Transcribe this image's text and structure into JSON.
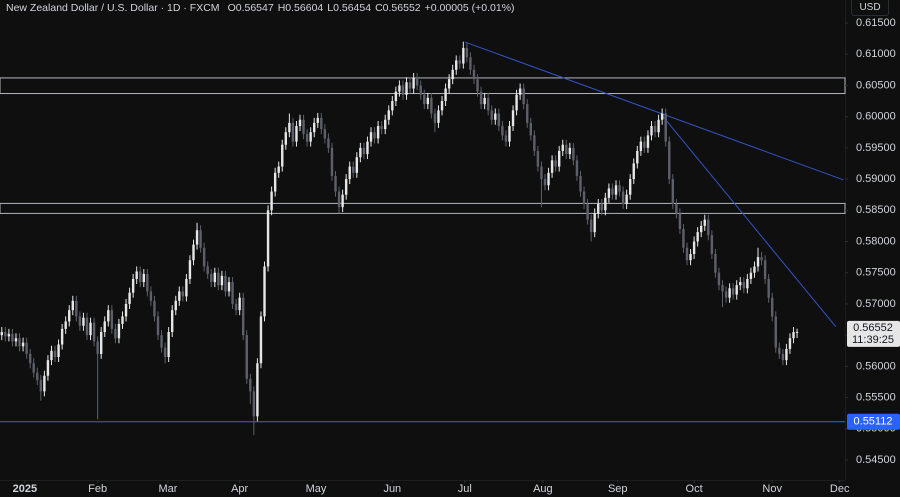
{
  "chart_data": {
    "type": "candlestick",
    "legend": {
      "symbol": "New Zealand Dollar / U.S. Dollar · 1D · FXCM",
      "fields": [
        {
          "label": "O",
          "value": "0.56547"
        },
        {
          "label": "H",
          "value": "0.56604"
        },
        {
          "label": "L",
          "value": "0.56454"
        },
        {
          "label": "C",
          "value": "0.56552"
        }
      ],
      "change": "+0.00005 (+0.01%)"
    },
    "currency": "USD",
    "countdown": "11:39:25",
    "up_color": "#e6e6e6",
    "down_color": "#5d606b",
    "xlim": [
      -0.5,
      237.5
    ],
    "xticks": [
      {
        "value": 6.5,
        "label": "2025"
      },
      {
        "value": 27,
        "label": "Feb"
      },
      {
        "value": 46.8,
        "label": "Mar"
      },
      {
        "value": 67,
        "label": "Apr"
      },
      {
        "value": 88.5,
        "label": "May"
      },
      {
        "value": 110,
        "label": "Jun"
      },
      {
        "value": 130.4,
        "label": "Jul"
      },
      {
        "value": 152.4,
        "label": "Aug"
      },
      {
        "value": 173.5,
        "label": "Sep"
      },
      {
        "value": 195,
        "label": "Oct"
      },
      {
        "value": 217,
        "label": "Nov"
      },
      {
        "value": 236,
        "label": "Dec"
      }
    ],
    "ylim": [
      0.5418,
      0.61868
    ],
    "yticks": [
      {
        "value": 0.545,
        "label": "0.54500"
      },
      {
        "value": 0.55,
        "label": "0.55000"
      },
      {
        "value": 0.555,
        "label": "0.55500"
      },
      {
        "value": 0.56,
        "label": "0.56000"
      },
      {
        "value": 0.565,
        "label": "0.56500"
      },
      {
        "value": 0.57,
        "label": "0.57000"
      },
      {
        "value": 0.575,
        "label": "0.57500"
      },
      {
        "value": 0.58,
        "label": "0.58000"
      },
      {
        "value": 0.585,
        "label": "0.58500"
      },
      {
        "value": 0.59,
        "label": "0.59000"
      },
      {
        "value": 0.595,
        "label": "0.59500"
      },
      {
        "value": 0.6,
        "label": "0.60000"
      },
      {
        "value": 0.605,
        "label": "0.60500"
      },
      {
        "value": 0.61,
        "label": "0.61000"
      },
      {
        "value": 0.615,
        "label": "0.61500"
      }
    ],
    "zones": [
      [
        0.6037,
        0.6062
      ],
      [
        0.5845,
        0.5861
      ]
    ],
    "zone_color": "#b2b5be",
    "support_line": {
      "value": 0.55112,
      "color": "#2962ff"
    },
    "trendlines": [
      {
        "x": [
          130.4,
          237
        ],
        "y": [
          0.61196,
          0.58988
        ]
      },
      {
        "x": [
          185.4,
          234.9
        ],
        "y": [
          0.6006,
          0.56636
        ]
      }
    ],
    "trendline_color": "#3554c4",
    "open": [
      0.565,
      0.5655,
      0.5648,
      0.5652,
      0.564,
      0.5645,
      0.5632,
      0.5638,
      0.562,
      0.5605,
      0.559,
      0.5578,
      0.556,
      0.5585,
      0.561,
      0.5625,
      0.5615,
      0.5635,
      0.566,
      0.5672,
      0.569,
      0.5705,
      0.568,
      0.5665,
      0.5678,
      0.565,
      0.567,
      0.564,
      0.562,
      0.5655,
      0.5672,
      0.569,
      0.566,
      0.5645,
      0.5668,
      0.568,
      0.57,
      0.5718,
      0.574,
      0.5752,
      0.5735,
      0.5748,
      0.572,
      0.5705,
      0.568,
      0.565,
      0.563,
      0.5615,
      0.5655,
      0.569,
      0.5705,
      0.572,
      0.5712,
      0.574,
      0.577,
      0.5795,
      0.5818,
      0.579,
      0.576,
      0.5748,
      0.5735,
      0.575,
      0.573,
      0.5745,
      0.572,
      0.5735,
      0.57,
      0.569,
      0.571,
      0.565,
      0.558,
      0.556,
      0.552,
      0.5605,
      0.568,
      0.576,
      0.585,
      0.588,
      0.591,
      0.592,
      0.5955,
      0.5975,
      0.599,
      0.596,
      0.5985,
      0.5995,
      0.5972,
      0.596,
      0.5975,
      0.599,
      0.5998,
      0.598,
      0.5965,
      0.595,
      0.5905,
      0.588,
      0.5855,
      0.5875,
      0.59,
      0.592,
      0.591,
      0.5935,
      0.595,
      0.594,
      0.596,
      0.5975,
      0.5965,
      0.5985,
      0.598,
      0.5995,
      0.601,
      0.6025,
      0.604,
      0.605,
      0.6035,
      0.6055,
      0.6045,
      0.6062,
      0.605,
      0.6035,
      0.602,
      0.603,
      0.6005,
      0.599,
      0.601,
      0.6025,
      0.6045,
      0.606,
      0.6075,
      0.609,
      0.6085,
      0.611,
      0.6095,
      0.6075,
      0.606,
      0.604,
      0.602,
      0.603,
      0.601,
      0.5995,
      0.6005,
      0.5985,
      0.597,
      0.596,
      0.5985,
      0.601,
      0.6035,
      0.6045,
      0.602,
      0.599,
      0.597,
      0.5945,
      0.592,
      0.59,
      0.589,
      0.591,
      0.593,
      0.592,
      0.5945,
      0.5955,
      0.594,
      0.595,
      0.593,
      0.5905,
      0.588,
      0.586,
      0.5835,
      0.5815,
      0.5845,
      0.586,
      0.585,
      0.587,
      0.5885,
      0.5875,
      0.589,
      0.588,
      0.586,
      0.5875,
      0.59,
      0.5925,
      0.5945,
      0.596,
      0.595,
      0.597,
      0.5985,
      0.5975,
      0.5995,
      0.6005,
      0.596,
      0.59,
      0.586,
      0.5845,
      0.582,
      0.579,
      0.577,
      0.578,
      0.58,
      0.5815,
      0.5825,
      0.5835,
      0.581,
      0.578,
      0.575,
      0.573,
      0.572,
      0.571,
      0.5725,
      0.5715,
      0.573,
      0.5735,
      0.5725,
      0.574,
      0.575,
      0.576,
      0.5775,
      0.577,
      0.574,
      0.571,
      0.568,
      0.563,
      0.562,
      0.561,
      0.5628,
      0.5645,
      0.56547
    ],
    "high": [
      0.5663,
      0.5663,
      0.566,
      0.566,
      0.5653,
      0.5653,
      0.5646,
      0.5646,
      0.5628,
      0.5613,
      0.5598,
      0.5586,
      0.5593,
      0.5618,
      0.5633,
      0.5633,
      0.5643,
      0.5668,
      0.568,
      0.5698,
      0.5713,
      0.5713,
      0.5688,
      0.5686,
      0.5686,
      0.5678,
      0.5678,
      0.5648,
      0.5663,
      0.568,
      0.5698,
      0.5698,
      0.5668,
      0.5676,
      0.5688,
      0.5708,
      0.5726,
      0.5748,
      0.576,
      0.576,
      0.5756,
      0.5756,
      0.5728,
      0.5713,
      0.5688,
      0.5658,
      0.5638,
      0.5663,
      0.5698,
      0.5713,
      0.5728,
      0.5728,
      0.5748,
      0.5778,
      0.5803,
      0.583,
      0.5826,
      0.5798,
      0.5768,
      0.5756,
      0.5758,
      0.5758,
      0.5753,
      0.5753,
      0.5743,
      0.5743,
      0.5708,
      0.5718,
      0.5718,
      0.5658,
      0.5588,
      0.5568,
      0.5613,
      0.5688,
      0.5768,
      0.5858,
      0.5888,
      0.5918,
      0.5928,
      0.5963,
      0.5983,
      0.6005,
      0.5998,
      0.5993,
      0.6003,
      0.6003,
      0.598,
      0.5983,
      0.5998,
      0.6006,
      0.6006,
      0.5988,
      0.5973,
      0.5958,
      0.5913,
      0.5888,
      0.5883,
      0.5908,
      0.5928,
      0.5928,
      0.5943,
      0.5958,
      0.5958,
      0.5968,
      0.5983,
      0.5983,
      0.5993,
      0.5993,
      0.6003,
      0.6018,
      0.6033,
      0.6048,
      0.6058,
      0.6058,
      0.6063,
      0.6063,
      0.607,
      0.607,
      0.6058,
      0.6043,
      0.6038,
      0.6038,
      0.6013,
      0.6018,
      0.6033,
      0.6053,
      0.6068,
      0.6083,
      0.6098,
      0.6098,
      0.612,
      0.6118,
      0.6103,
      0.6083,
      0.6068,
      0.6048,
      0.6038,
      0.6038,
      0.6018,
      0.6013,
      0.6013,
      0.5993,
      0.5978,
      0.5993,
      0.6018,
      0.6043,
      0.6053,
      0.6053,
      0.6028,
      0.5998,
      0.5978,
      0.5953,
      0.5928,
      0.5908,
      0.5918,
      0.5938,
      0.5938,
      0.5953,
      0.5963,
      0.5963,
      0.5958,
      0.5958,
      0.5938,
      0.5913,
      0.5888,
      0.5868,
      0.5843,
      0.5853,
      0.5868,
      0.5868,
      0.5878,
      0.5893,
      0.5893,
      0.5898,
      0.5898,
      0.5888,
      0.5883,
      0.5908,
      0.5933,
      0.5953,
      0.5968,
      0.5968,
      0.5978,
      0.5993,
      0.5993,
      0.6003,
      0.6013,
      0.6013,
      0.5968,
      0.5908,
      0.5868,
      0.5853,
      0.5828,
      0.5798,
      0.5788,
      0.5808,
      0.5823,
      0.5833,
      0.5843,
      0.5843,
      0.5818,
      0.5788,
      0.5758,
      0.5738,
      0.5728,
      0.5733,
      0.5733,
      0.5738,
      0.5743,
      0.5743,
      0.5748,
      0.5758,
      0.5768,
      0.579,
      0.5783,
      0.5778,
      0.5748,
      0.5718,
      0.5688,
      0.5638,
      0.5628,
      0.5636,
      0.5653,
      0.5663,
      0.56604
    ],
    "low": [
      0.5642,
      0.564,
      0.564,
      0.5632,
      0.5632,
      0.5624,
      0.5624,
      0.5612,
      0.5597,
      0.5582,
      0.557,
      0.5545,
      0.5552,
      0.5577,
      0.5602,
      0.5607,
      0.5607,
      0.5627,
      0.5652,
      0.5664,
      0.5682,
      0.5672,
      0.5657,
      0.5657,
      0.5642,
      0.5642,
      0.5632,
      0.5515,
      0.5612,
      0.5647,
      0.5664,
      0.5652,
      0.5637,
      0.5637,
      0.566,
      0.5672,
      0.5692,
      0.571,
      0.5732,
      0.5727,
      0.5727,
      0.5712,
      0.5697,
      0.5672,
      0.5642,
      0.5622,
      0.5605,
      0.5607,
      0.5647,
      0.5682,
      0.5697,
      0.5704,
      0.5704,
      0.5732,
      0.5762,
      0.5787,
      0.5782,
      0.5752,
      0.574,
      0.5727,
      0.5727,
      0.5722,
      0.5722,
      0.5712,
      0.5712,
      0.5692,
      0.5682,
      0.5682,
      0.5642,
      0.5572,
      0.554,
      0.549,
      0.5512,
      0.5597,
      0.5672,
      0.5752,
      0.5842,
      0.5872,
      0.5902,
      0.5912,
      0.5947,
      0.5967,
      0.5952,
      0.5952,
      0.5977,
      0.5964,
      0.5952,
      0.5952,
      0.5967,
      0.5982,
      0.5972,
      0.5957,
      0.5942,
      0.5897,
      0.5872,
      0.5845,
      0.5847,
      0.5867,
      0.5892,
      0.5902,
      0.5902,
      0.5927,
      0.5932,
      0.5932,
      0.5952,
      0.5957,
      0.5957,
      0.5972,
      0.5972,
      0.5987,
      0.6002,
      0.6017,
      0.6032,
      0.6027,
      0.6027,
      0.6037,
      0.6037,
      0.6042,
      0.6027,
      0.6012,
      0.6012,
      0.5997,
      0.5975,
      0.5982,
      0.6002,
      0.6017,
      0.6037,
      0.6052,
      0.6067,
      0.6077,
      0.6077,
      0.6087,
      0.6067,
      0.6052,
      0.6032,
      0.6012,
      0.6012,
      0.6002,
      0.5987,
      0.5987,
      0.5977,
      0.5962,
      0.5952,
      0.5952,
      0.5977,
      0.6002,
      0.6027,
      0.6012,
      0.5982,
      0.5962,
      0.5937,
      0.5912,
      0.5855,
      0.5882,
      0.5882,
      0.5902,
      0.5912,
      0.5912,
      0.5937,
      0.5932,
      0.5932,
      0.5922,
      0.5897,
      0.5872,
      0.5852,
      0.5827,
      0.58,
      0.5807,
      0.5837,
      0.5842,
      0.5842,
      0.5862,
      0.5867,
      0.5867,
      0.5872,
      0.5852,
      0.5852,
      0.5867,
      0.5892,
      0.5917,
      0.5937,
      0.5942,
      0.5942,
      0.5962,
      0.5967,
      0.5967,
      0.5987,
      0.5952,
      0.5892,
      0.5852,
      0.5837,
      0.5812,
      0.5782,
      0.5762,
      0.5762,
      0.5772,
      0.5792,
      0.5807,
      0.5817,
      0.5802,
      0.5772,
      0.5742,
      0.5722,
      0.5695,
      0.5702,
      0.5702,
      0.5707,
      0.5707,
      0.5722,
      0.5717,
      0.5717,
      0.5732,
      0.5742,
      0.5752,
      0.5762,
      0.5732,
      0.5702,
      0.5672,
      0.5622,
      0.5612,
      0.5602,
      0.5602,
      0.562,
      0.5637,
      0.56454
    ],
    "close": [
      0.5655,
      0.5648,
      0.5652,
      0.564,
      0.5645,
      0.5632,
      0.5638,
      0.562,
      0.5605,
      0.559,
      0.5578,
      0.556,
      0.5585,
      0.561,
      0.5625,
      0.5615,
      0.5635,
      0.566,
      0.5672,
      0.569,
      0.5705,
      0.568,
      0.5665,
      0.5678,
      0.565,
      0.567,
      0.564,
      0.562,
      0.5655,
      0.5672,
      0.569,
      0.566,
      0.5645,
      0.5668,
      0.568,
      0.57,
      0.5718,
      0.574,
      0.5752,
      0.5735,
      0.5748,
      0.572,
      0.5705,
      0.568,
      0.565,
      0.563,
      0.5615,
      0.5655,
      0.569,
      0.5705,
      0.572,
      0.5712,
      0.574,
      0.577,
      0.5795,
      0.5818,
      0.579,
      0.576,
      0.5748,
      0.5735,
      0.575,
      0.573,
      0.5745,
      0.572,
      0.5735,
      0.57,
      0.569,
      0.571,
      0.565,
      0.558,
      0.556,
      0.552,
      0.5605,
      0.568,
      0.576,
      0.585,
      0.588,
      0.591,
      0.592,
      0.5955,
      0.5975,
      0.599,
      0.596,
      0.5985,
      0.5995,
      0.5972,
      0.596,
      0.5975,
      0.599,
      0.5998,
      0.598,
      0.5965,
      0.595,
      0.5905,
      0.588,
      0.5855,
      0.5875,
      0.59,
      0.592,
      0.591,
      0.5935,
      0.595,
      0.594,
      0.596,
      0.5975,
      0.5965,
      0.5985,
      0.598,
      0.5995,
      0.601,
      0.6025,
      0.604,
      0.605,
      0.6035,
      0.6055,
      0.6045,
      0.6062,
      0.605,
      0.6035,
      0.602,
      0.603,
      0.6005,
      0.599,
      0.601,
      0.6025,
      0.6045,
      0.606,
      0.6075,
      0.609,
      0.6085,
      0.611,
      0.6095,
      0.6075,
      0.606,
      0.604,
      0.602,
      0.603,
      0.601,
      0.5995,
      0.6005,
      0.5985,
      0.597,
      0.596,
      0.5985,
      0.601,
      0.6035,
      0.6045,
      0.602,
      0.599,
      0.597,
      0.5945,
      0.592,
      0.59,
      0.589,
      0.591,
      0.593,
      0.592,
      0.5945,
      0.5955,
      0.594,
      0.595,
      0.593,
      0.5905,
      0.588,
      0.586,
      0.5835,
      0.5815,
      0.5845,
      0.586,
      0.585,
      0.587,
      0.5885,
      0.5875,
      0.589,
      0.588,
      0.586,
      0.5875,
      0.59,
      0.5925,
      0.5945,
      0.596,
      0.595,
      0.597,
      0.5985,
      0.5975,
      0.5995,
      0.6005,
      0.596,
      0.59,
      0.586,
      0.5845,
      0.582,
      0.579,
      0.577,
      0.578,
      0.58,
      0.5815,
      0.5825,
      0.5835,
      0.581,
      0.578,
      0.575,
      0.573,
      0.572,
      0.571,
      0.5725,
      0.5715,
      0.573,
      0.5735,
      0.5725,
      0.574,
      0.575,
      0.576,
      0.5775,
      0.577,
      0.574,
      0.571,
      0.568,
      0.563,
      0.562,
      0.561,
      0.5628,
      0.5645,
      0.5655,
      0.56552
    ]
  }
}
